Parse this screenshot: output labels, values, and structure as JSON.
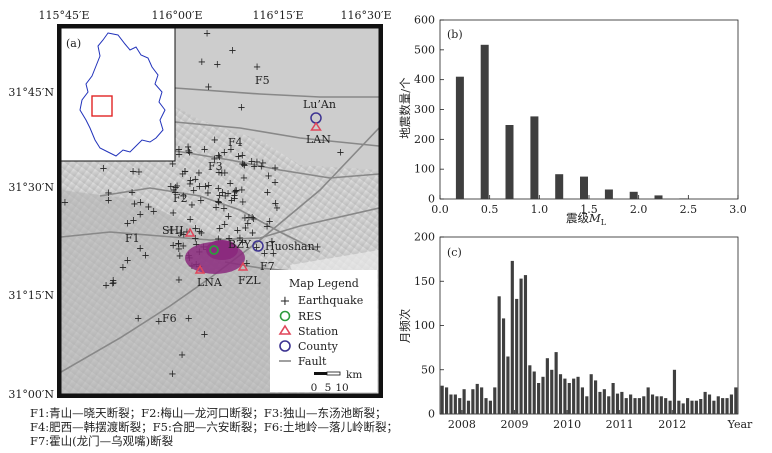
{
  "chart_data": [
    {
      "panel_label": "(a)",
      "type": "map",
      "lon_ticks": [
        "115°45′E",
        "116°00′E",
        "116°15′E",
        "116°30′E"
      ],
      "lat_ticks": [
        "31°45′N",
        "31°30′N",
        "31°15′N",
        "31°00′N"
      ],
      "fault_labels": [
        "F1",
        "F2",
        "F3",
        "F4",
        "F5",
        "F6",
        "F7"
      ],
      "place_labels": {
        "luan": "Lu’An",
        "lan": "LAN",
        "huoshan": "Huoshan",
        "bzy": "BZY",
        "shj": "SHJ",
        "lna": "LNA",
        "fzl": "FZL"
      },
      "legend": {
        "title": "Map Legend",
        "items": [
          "Earthquake",
          "RES",
          "Station",
          "County",
          "Fault"
        ]
      },
      "scale_bar": {
        "ticks": [
          "0",
          "5",
          "10"
        ],
        "unit": "km"
      },
      "colors": {
        "earthquake": "#8b2a7e",
        "res": "#2e9b3e",
        "station": "#e0465a",
        "county": "#3d3391",
        "fault": "#888888",
        "inset_outline": "#2233bb",
        "inset_box": "#e02424"
      }
    },
    {
      "panel_label": "(b)",
      "type": "bar",
      "ylabel": "地震数量/个",
      "xlabel_main": "震级",
      "xlabel_var": "M",
      "xlabel_sub": "L",
      "xlim": [
        0,
        3
      ],
      "ylim": [
        0,
        600
      ],
      "x_ticks": [
        "0.0",
        "0.5",
        "1.0",
        "1.5",
        "2.0",
        "2.5",
        "3.0"
      ],
      "y_ticks": [
        "0",
        "100",
        "200",
        "300",
        "400",
        "500",
        "600"
      ],
      "x": [
        0.2,
        0.45,
        0.7,
        0.95,
        1.2,
        1.45,
        1.7,
        1.95,
        2.2,
        2.45
      ],
      "values": [
        410,
        517,
        248,
        277,
        83,
        75,
        32,
        24,
        12,
        2
      ],
      "color": "#3f3f3f"
    },
    {
      "panel_label": "(c)",
      "type": "bar",
      "ylabel": "月频次",
      "ylim": [
        0,
        200
      ],
      "y_ticks": [
        "0",
        "50",
        "100",
        "150",
        "200"
      ],
      "x_ticks": [
        "2008",
        "2009",
        "2010",
        "2011",
        "2012"
      ],
      "x_unit": "Year",
      "first_month": "2007-08",
      "values": [
        32,
        30,
        22,
        22,
        18,
        28,
        15,
        28,
        34,
        30,
        18,
        15,
        30,
        133,
        108,
        65,
        173,
        130,
        153,
        157,
        55,
        48,
        35,
        42,
        63,
        50,
        70,
        45,
        40,
        35,
        40,
        42,
        30,
        20,
        45,
        38,
        25,
        28,
        20,
        35,
        23,
        25,
        18,
        22,
        18,
        18,
        20,
        30,
        22,
        20,
        20,
        18,
        15,
        50,
        15,
        12,
        18,
        15,
        15,
        17,
        25,
        22,
        15,
        20,
        18,
        18,
        22,
        30
      ],
      "color": "#3f3f3f"
    }
  ],
  "caption": [
    "F1:青山—晓天断裂；F2:梅山—龙河口断裂；F3:独山—东汤池断裂；",
    "F4:肥西—韩摆渡断裂；F5:合肥—六安断裂；F6:土地岭—落儿岭断裂；",
    "F7:霍山(龙门—乌观嘴)断裂"
  ]
}
